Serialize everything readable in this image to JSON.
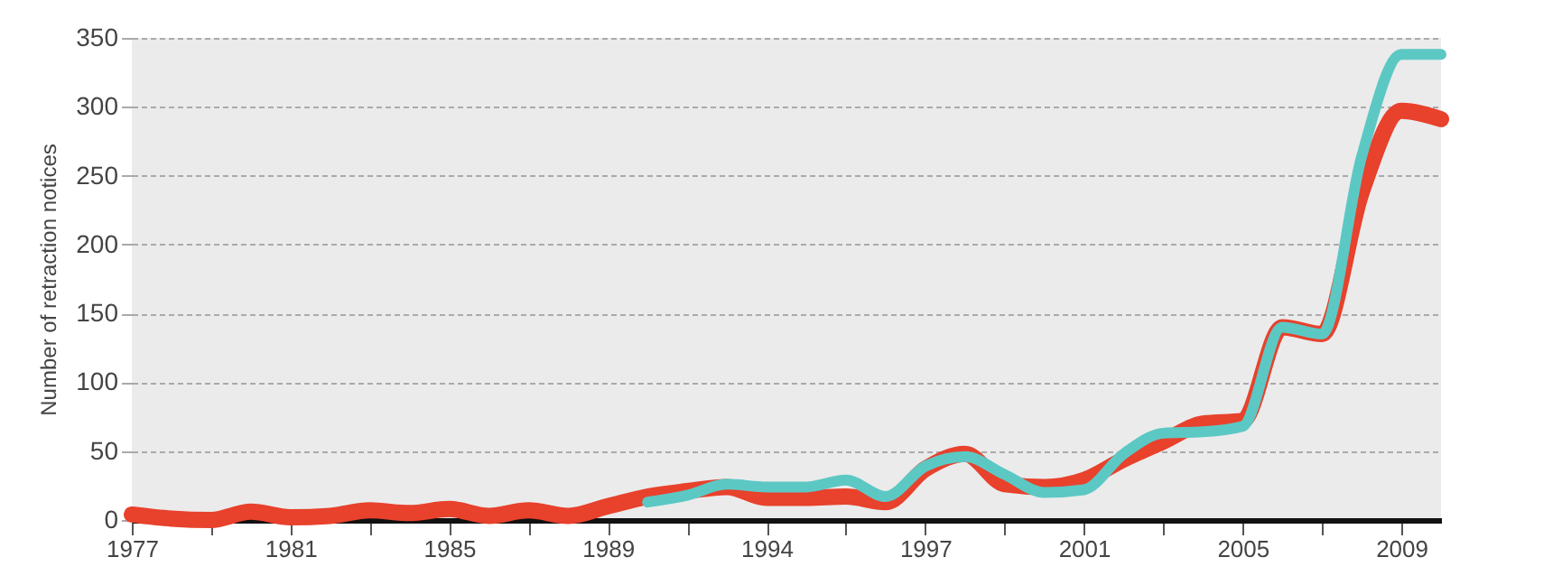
{
  "chart_data": {
    "type": "line",
    "ylabel": "Number of retraction notices",
    "ylim": [
      0,
      350
    ],
    "yticks": [
      0,
      50,
      100,
      150,
      200,
      250,
      300,
      350
    ],
    "categories": [
      "1977",
      null,
      null,
      null,
      "1981",
      null,
      null,
      null,
      "1985",
      null,
      null,
      null,
      "1989",
      null,
      null,
      null,
      "1994",
      null,
      null,
      null,
      "1997",
      null,
      null,
      null,
      "2001",
      null,
      null,
      null,
      "2005",
      null,
      null,
      null,
      "2009",
      null
    ],
    "grid": "y",
    "series": [
      {
        "color": "#e8412c",
        "values": [
          4,
          1,
          0,
          6,
          2,
          3,
          7,
          5,
          8,
          3,
          7,
          3,
          10,
          17,
          21,
          24,
          16,
          16,
          17,
          13,
          37,
          48,
          26,
          24,
          29,
          44,
          57,
          70,
          72,
          140,
          135,
          238,
          297,
          291
        ]
      },
      {
        "color": "#5cc8c4",
        "values": [
          null,
          null,
          null,
          null,
          null,
          null,
          null,
          null,
          null,
          null,
          null,
          null,
          null,
          13,
          18,
          26,
          24,
          24,
          29,
          17,
          39,
          46,
          33,
          20,
          22,
          48,
          63,
          64,
          68,
          140,
          135,
          264,
          338,
          338
        ]
      }
    ]
  }
}
